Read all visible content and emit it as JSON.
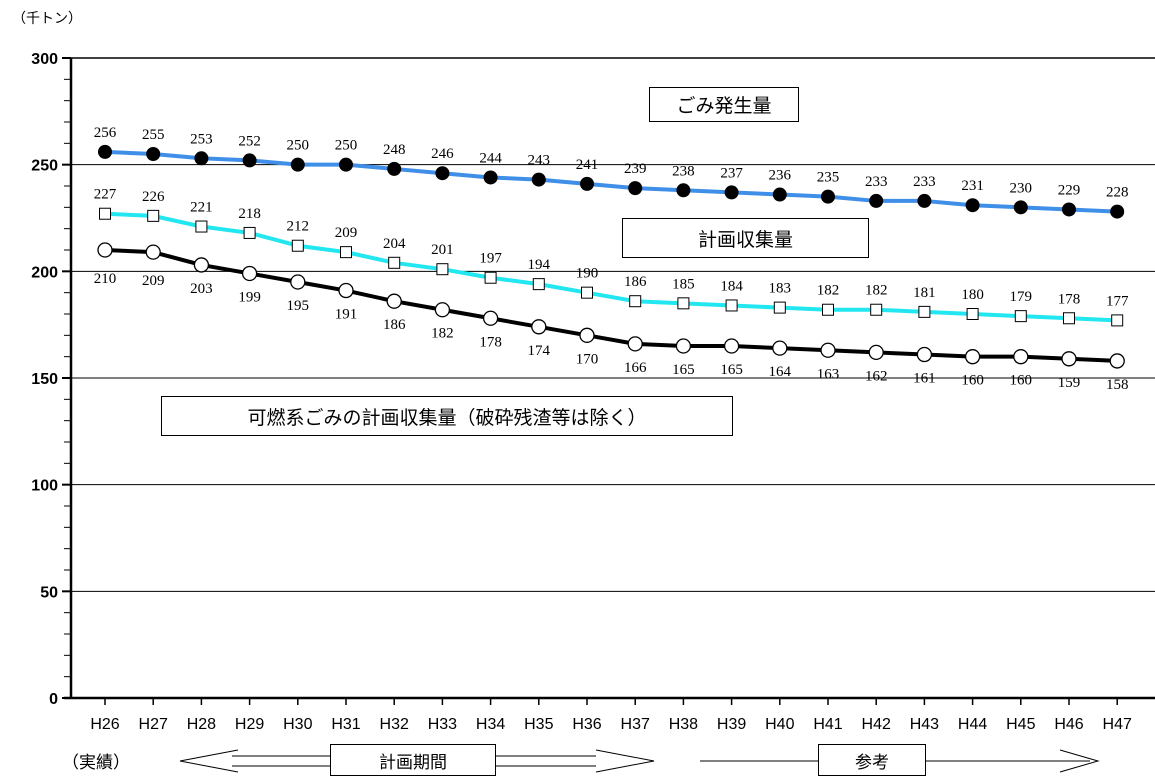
{
  "unit_label": "（千トン）",
  "boxes": {
    "generation": "ごみ発生量",
    "collection": "計画収集量",
    "combustible": "可燃系ごみの計画収集量（破砕残渣等は除く）"
  },
  "periods": {
    "actual": "（実績）",
    "plan": "計画期間",
    "reference": "参考"
  },
  "colors": {
    "generation": "#3f8fe8",
    "collection": "#22e6f0",
    "combustible": "#000000"
  },
  "chart_data": {
    "type": "line",
    "categories": [
      "H26",
      "H27",
      "H28",
      "H29",
      "H30",
      "H31",
      "H32",
      "H33",
      "H34",
      "H35",
      "H36",
      "H37",
      "H38",
      "H39",
      "H40",
      "H41",
      "H42",
      "H43",
      "H44",
      "H45",
      "H46",
      "H47"
    ],
    "ylim": [
      0,
      300
    ],
    "yticks": [
      0,
      50,
      100,
      150,
      200,
      250,
      300
    ],
    "grid": true,
    "series": [
      {
        "name": "ごみ発生量",
        "marker": "filled-circle",
        "values": [
          256,
          255,
          253,
          252,
          250,
          250,
          248,
          246,
          244,
          243,
          241,
          239,
          238,
          237,
          236,
          235,
          233,
          233,
          231,
          230,
          229,
          228
        ]
      },
      {
        "name": "計画収集量",
        "marker": "open-square",
        "values": [
          227,
          226,
          221,
          218,
          212,
          209,
          204,
          201,
          197,
          194,
          190,
          186,
          185,
          184,
          183,
          182,
          182,
          181,
          180,
          179,
          178,
          177
        ]
      },
      {
        "name": "可燃系ごみの計画収集量（破砕残渣等は除く）",
        "marker": "open-circle",
        "values": [
          210,
          209,
          203,
          199,
          195,
          191,
          186,
          182,
          178,
          174,
          170,
          166,
          165,
          165,
          164,
          163,
          162,
          161,
          160,
          160,
          159,
          158
        ]
      }
    ]
  }
}
